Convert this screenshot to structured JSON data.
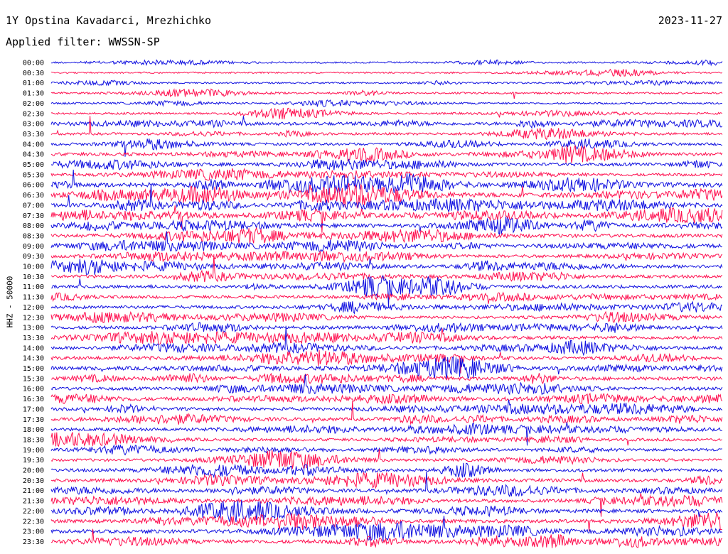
{
  "header": {
    "station": "1Y Opstina Kavadarci, Mrezhichko",
    "date": "2023-11-27",
    "filter": "Applied filter: WWSSN-SP",
    "channel_label": "HHZ - 50000"
  },
  "colors": {
    "trace_a": "#1010e0",
    "trace_b": "#ff1050"
  },
  "chart_data": {
    "type": "line",
    "title": "1Y Opstina Kavadarci, Mrezhichko",
    "ylabel": "HHZ - 50000",
    "row_labels": [
      "00:00",
      "00:30",
      "01:00",
      "01:30",
      "02:00",
      "02:30",
      "03:00",
      "03:30",
      "04:00",
      "04:30",
      "05:00",
      "05:30",
      "06:00",
      "06:30",
      "07:00",
      "07:30",
      "08:00",
      "08:30",
      "09:00",
      "09:30",
      "10:00",
      "10:30",
      "11:00",
      "11:30",
      "12:00",
      "12:30",
      "13:00",
      "13:30",
      "14:00",
      "14:30",
      "15:00",
      "15:30",
      "16:00",
      "16:30",
      "17:00",
      "17:30",
      "18:00",
      "18:30",
      "19:00",
      "19:30",
      "20:00",
      "20:30",
      "21:00",
      "21:30",
      "22:00",
      "22:30",
      "23:00",
      "23:30"
    ],
    "row_activity": [
      0.15,
      0.12,
      0.15,
      0.2,
      0.18,
      0.25,
      0.55,
      0.35,
      0.4,
      0.6,
      0.55,
      0.45,
      0.9,
      0.95,
      0.7,
      0.75,
      0.7,
      0.65,
      0.6,
      0.55,
      0.6,
      0.55,
      0.6,
      0.5,
      0.55,
      0.45,
      0.55,
      0.6,
      0.55,
      0.6,
      0.7,
      0.65,
      0.55,
      0.6,
      0.55,
      0.6,
      0.55,
      0.45,
      0.4,
      0.4,
      0.55,
      0.6,
      0.6,
      0.55,
      0.65,
      0.65,
      0.7,
      0.65
    ],
    "grid": false
  }
}
